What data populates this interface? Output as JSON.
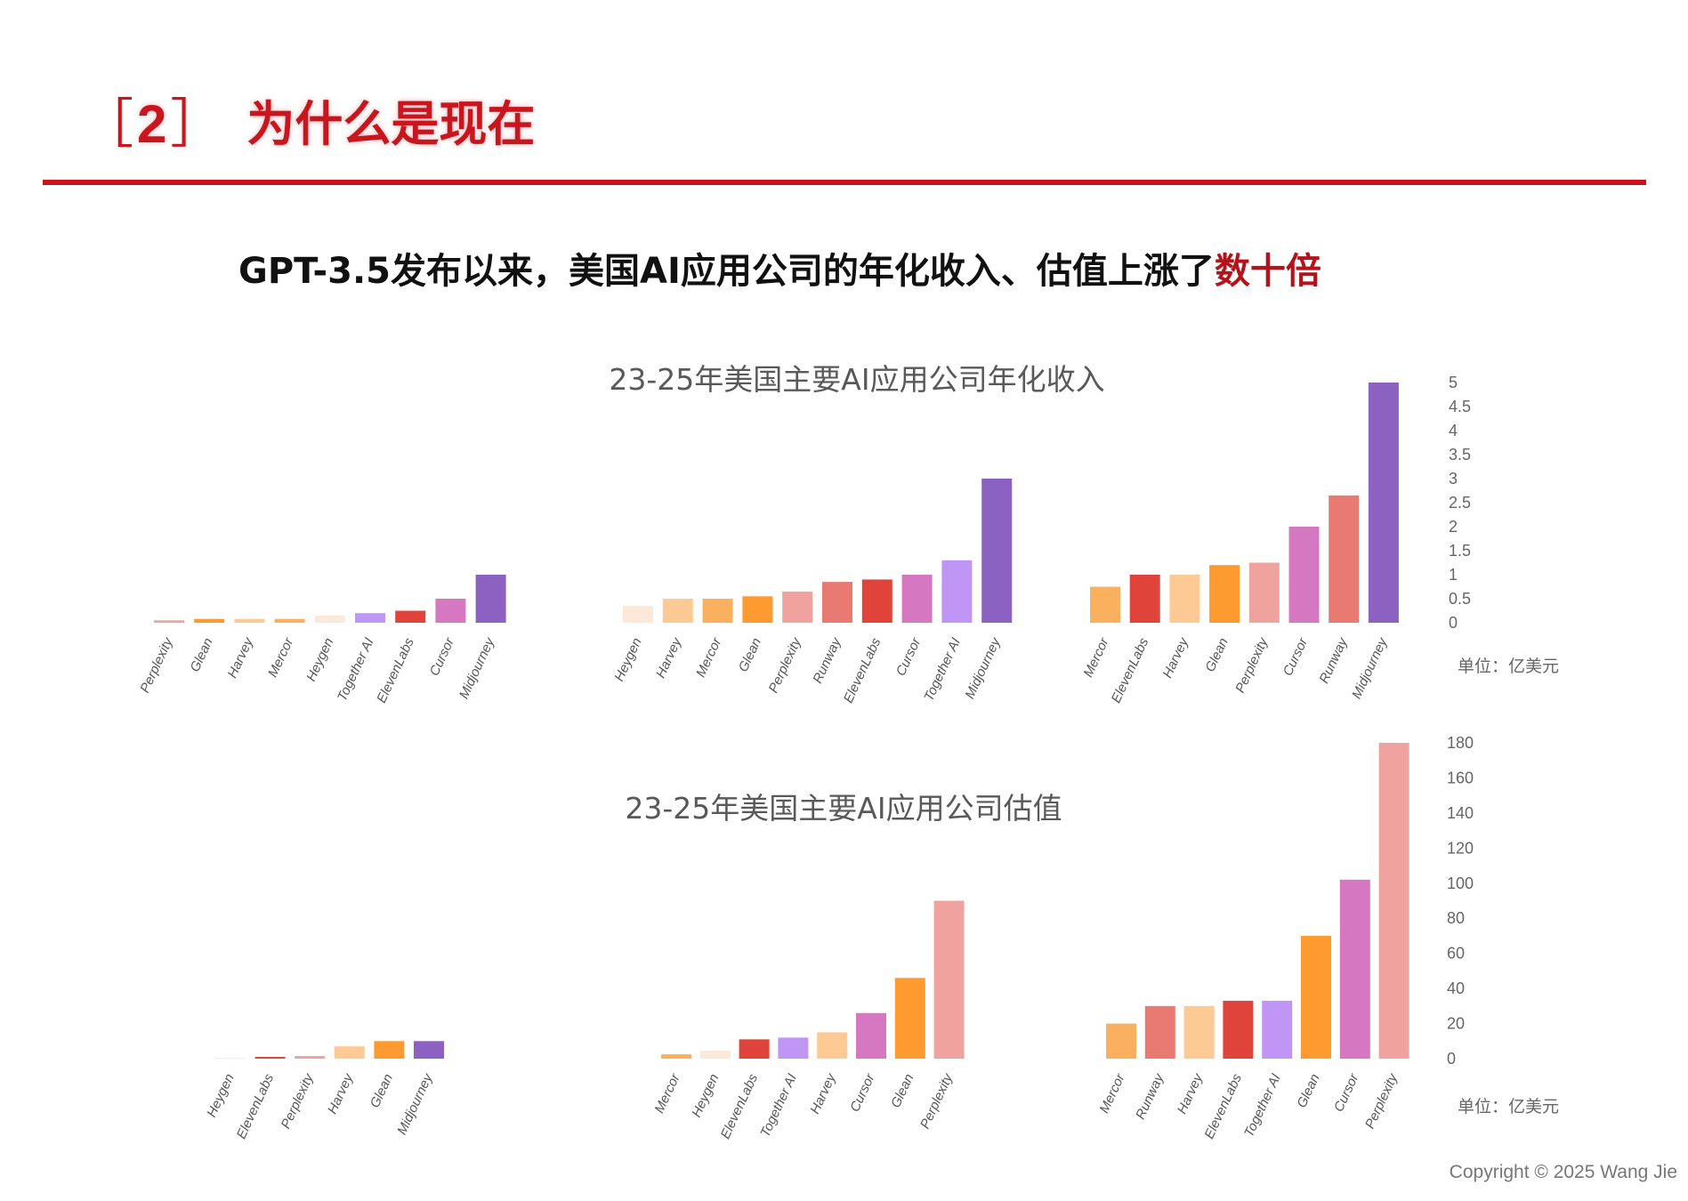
{
  "header": {
    "bracket_left": "［",
    "section_number": "2",
    "bracket_right": "］",
    "title": "为什么是现在"
  },
  "subtitle": {
    "text": "GPT-3.5发布以来，美国AI应用公司的年化收入、估值上涨了",
    "highlight": "数十倍"
  },
  "copyright": "Copyright © 2025 Wang Jie",
  "colors": {
    "brand_red": "#c9151e",
    "highlight_red": "#b3141c",
    "Perplexity": "#f0a39e",
    "Glean": "#fd9a30",
    "Harvey": "#fdca96",
    "Mercor": "#fbb060",
    "Heygen": "#fde9da",
    "Together AI": "#bf95f5",
    "ElevenLabs": "#e0433a",
    "Cursor": "#d677c1",
    "Midjourney": "#8b62c1",
    "Runway": "#e97a72"
  },
  "chart_data": [
    {
      "type": "bar",
      "title": "23-25年美国主要AI应用公司年化收入",
      "unit_label": "单位：亿美元",
      "ylim": [
        0,
        5
      ],
      "y_ticks": [
        "0",
        "0.5",
        "1",
        "1.5",
        "2",
        "2.5",
        "3",
        "3.5",
        "4",
        "4.5",
        "5"
      ],
      "groups": [
        {
          "categories": [
            "Perplexity",
            "Glean",
            "Harvey",
            "Mercor",
            "Heygen",
            "Together AI",
            "ElevenLabs",
            "Cursor",
            "Midjourney"
          ],
          "values": [
            0.05,
            0.08,
            0.08,
            0.08,
            0.15,
            0.2,
            0.25,
            0.5,
            1.0
          ]
        },
        {
          "categories": [
            "Heygen",
            "Harvey",
            "Mercor",
            "Glean",
            "Perplexity",
            "Runway",
            "ElevenLabs",
            "Cursor",
            "Together AI",
            "Midjourney"
          ],
          "values": [
            0.35,
            0.5,
            0.5,
            0.55,
            0.65,
            0.85,
            0.9,
            1.0,
            1.3,
            3.0
          ]
        },
        {
          "categories": [
            "Mercor",
            "ElevenLabs",
            "Harvey",
            "Glean",
            "Perplexity",
            "Cursor",
            "Runway",
            "Midjourney"
          ],
          "values": [
            0.75,
            1.0,
            1.0,
            1.2,
            1.25,
            2.0,
            2.65,
            5.0
          ]
        }
      ]
    },
    {
      "type": "bar",
      "title": "23-25年美国主要AI应用公司估值",
      "unit_label": "单位：亿美元",
      "ylim": [
        0,
        180
      ],
      "y_ticks": [
        "0",
        "20",
        "40",
        "60",
        "80",
        "100",
        "120",
        "140",
        "160",
        "180"
      ],
      "groups": [
        {
          "categories": [
            "Heygen",
            "ElevenLabs",
            "Perplexity",
            "Harvey",
            "Glean",
            "Midjourney"
          ],
          "values": [
            0.5,
            1,
            1.5,
            7,
            10,
            10
          ]
        },
        {
          "categories": [
            "Mercor",
            "Heygen",
            "ElevenLabs",
            "Together AI",
            "Harvey",
            "Cursor",
            "Glean",
            "Perplexity"
          ],
          "values": [
            2.5,
            4.5,
            11,
            12,
            15,
            26,
            46,
            90
          ]
        },
        {
          "categories": [
            "Mercor",
            "Runway",
            "Harvey",
            "ElevenLabs",
            "Together AI",
            "Glean",
            "Cursor",
            "Perplexity"
          ],
          "values": [
            20,
            30,
            30,
            33,
            33,
            70,
            102,
            180
          ]
        }
      ]
    }
  ]
}
